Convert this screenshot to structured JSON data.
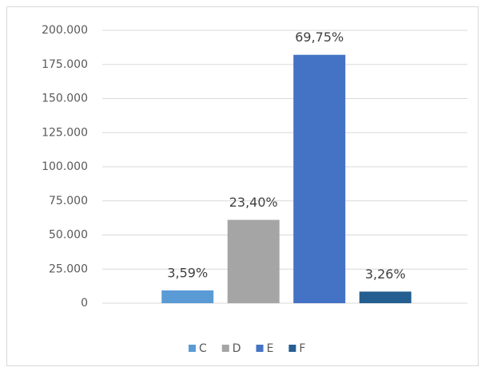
{
  "chart_data": {
    "type": "bar",
    "categories": [
      null
    ],
    "series": [
      {
        "name": "C",
        "color": "#5b9bd5",
        "values": [
          9370
        ],
        "percent_labels": [
          "3,59%"
        ]
      },
      {
        "name": "D",
        "color": "#a5a5a5",
        "values": [
          61070
        ],
        "percent_labels": [
          "23,40%"
        ]
      },
      {
        "name": "E",
        "color": "#4472c4",
        "values": [
          182050
        ],
        "percent_labels": [
          "69,75%"
        ]
      },
      {
        "name": "F",
        "color": "#255e91",
        "values": [
          8510
        ],
        "percent_labels": [
          "3,26%"
        ]
      }
    ],
    "ylim": [
      0,
      200000
    ],
    "yticks": [
      0,
      {
        "value": 25000,
        "label": "25.000"
      },
      {
        "value": 50000,
        "label": "50.000"
      },
      {
        "value": 75000,
        "label": "75.000"
      },
      {
        "value": 100000,
        "label": "100.000"
      },
      {
        "value": 125000,
        "label": "125.000"
      },
      {
        "value": 150000,
        "label": "150.000"
      },
      {
        "value": 175000,
        "label": "175.000"
      },
      {
        "value": 200000,
        "label": "200.000"
      }
    ],
    "grid": true,
    "legend": "bottom"
  }
}
